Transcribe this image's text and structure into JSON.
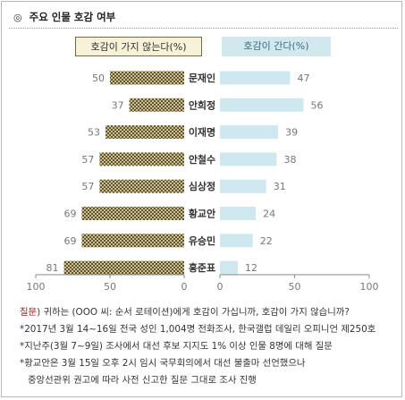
{
  "header": {
    "icon": "◎",
    "title": "주요 인물 호감 여부"
  },
  "legend": {
    "left_label": "호감이 가지 않는다(%)",
    "right_label": "호감이 간다(%)"
  },
  "colors": {
    "dislike_fill": "#cdbf8c",
    "dislike_hatch": "#5e5436",
    "like_fill": "#cfe8f0",
    "axis": "#888888",
    "label_dark": "#333333",
    "label_light": "#777777",
    "question": "#8b1c1c"
  },
  "chart_data": {
    "type": "bar",
    "orientation": "horizontal-diverging",
    "categories": [
      "문재인",
      "안희정",
      "이재명",
      "안철수",
      "심상정",
      "황교안",
      "유승민",
      "홍준표"
    ],
    "series": [
      {
        "name": "호감이 가지 않는다(%)",
        "values": [
          50,
          37,
          53,
          57,
          57,
          69,
          69,
          81
        ]
      },
      {
        "name": "호감이 간다(%)",
        "values": [
          47,
          56,
          39,
          38,
          31,
          24,
          22,
          12
        ]
      }
    ],
    "left_axis": {
      "ticks": [
        100,
        50,
        0
      ],
      "range": [
        0,
        100
      ]
    },
    "right_axis": {
      "ticks": [
        0,
        50,
        100
      ],
      "range": [
        0,
        100
      ]
    },
    "grid": false
  },
  "footnotes": {
    "question_label": "질문)",
    "question_text": "귀하는 (OOO 씨: 순서 로테이션)에게 호감이 가십니까, 호감이 가지 않습니까?",
    "lines": [
      "*2017년 3월 14~16일 전국 성인 1,004명 전화조사, 한국갤럽 데일리 오피니언 제250호",
      "*지난주(3월 7~9일) 조사에서 대선 후보 지지도 1% 이상 인물 8명에 대해 질문",
      "*황교안은 3월 15일 오후 2시 임시 국무회의에서 대선 불출마 선언했으나",
      "중앙선관위 권고에 따라 사전 신고한 질문 그대로 조사 진행"
    ]
  }
}
